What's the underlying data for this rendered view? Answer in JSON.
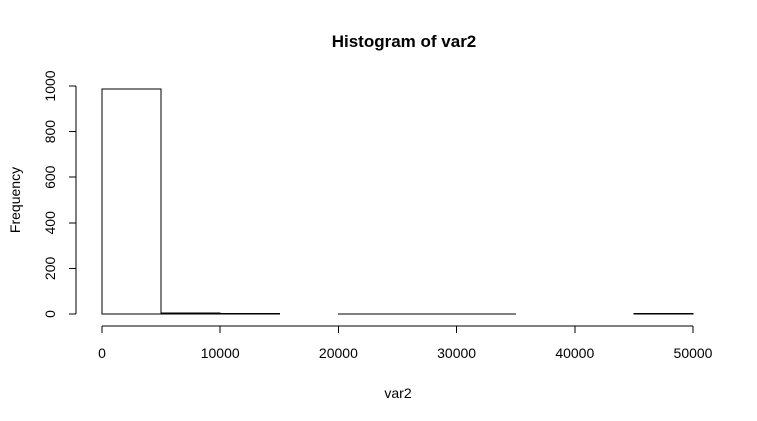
{
  "chart_data": {
    "type": "bar",
    "title": "Histogram of var2",
    "xlabel": "var2",
    "ylabel": "Frequency",
    "categories": [
      "0-5000",
      "5000-10000",
      "10000-15000",
      "15000-20000",
      "20000-25000",
      "25000-30000",
      "30000-35000",
      "35000-40000",
      "40000-45000",
      "45000-50000"
    ],
    "bins": [
      [
        0,
        5000
      ],
      [
        5000,
        10000
      ],
      [
        10000,
        15000
      ],
      [
        15000,
        20000
      ],
      [
        20000,
        25000
      ],
      [
        25000,
        30000
      ],
      [
        30000,
        35000
      ],
      [
        35000,
        40000
      ],
      [
        40000,
        45000
      ],
      [
        45000,
        50000
      ]
    ],
    "values": [
      987,
      5,
      2,
      0,
      1,
      1,
      1,
      0,
      0,
      2
    ],
    "xlim": [
      0,
      50000
    ],
    "ylim": [
      0,
      1000
    ],
    "x_ticks": [
      0,
      10000,
      20000,
      30000,
      40000,
      50000
    ],
    "y_ticks": [
      0,
      200,
      400,
      600,
      800,
      1000
    ],
    "x_tick_labels": [
      "0",
      "10000",
      "20000",
      "30000",
      "40000",
      "50000"
    ],
    "y_tick_labels": [
      "0",
      "200",
      "400",
      "600",
      "800",
      "1000"
    ],
    "grid": false,
    "legend": "none",
    "colors": {
      "bar_fill": "#ffffff",
      "bar_stroke": "#000000",
      "axis": "#000000",
      "background": "#ffffff"
    }
  }
}
